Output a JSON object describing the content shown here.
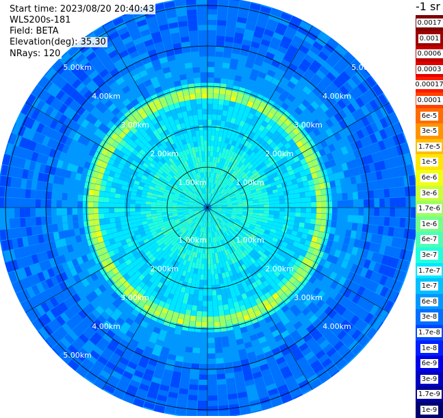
{
  "header": {
    "start_time": "Start time: 2023/08/20 20:40:43",
    "instrument": "WLS200s-181",
    "field": "Field: BETA",
    "elevation": "Elevation(deg): 35.30",
    "nrays": "NRays: 120"
  },
  "colorbar": {
    "unit_label": "-1 sr",
    "entries": [
      {
        "label": "0.0017",
        "color": "#7f0000"
      },
      {
        "label": "0.001",
        "color": "#9e0000"
      },
      {
        "label": "0.0006",
        "color": "#c00000"
      },
      {
        "label": "0.0003",
        "color": "#e00000"
      },
      {
        "label": "0.00017",
        "color": "#ff1a00"
      },
      {
        "label": "0.0001",
        "color": "#ff4200"
      },
      {
        "label": "6e-5",
        "color": "#ff6c00"
      },
      {
        "label": "3e-5",
        "color": "#ff9400"
      },
      {
        "label": "1.7e-5",
        "color": "#ffbe00"
      },
      {
        "label": "1e-5",
        "color": "#ffe600"
      },
      {
        "label": "6e-6",
        "color": "#f0ff10"
      },
      {
        "label": "3e-6",
        "color": "#c8ff38"
      },
      {
        "label": "1.7e-6",
        "color": "#9cff62"
      },
      {
        "label": "1e-6",
        "color": "#74ff8a"
      },
      {
        "label": "6e-7",
        "color": "#4cffb4"
      },
      {
        "label": "3e-7",
        "color": "#22ffdc"
      },
      {
        "label": "1.7e-7",
        "color": "#00e8ff"
      },
      {
        "label": "1e-7",
        "color": "#00c0ff"
      },
      {
        "label": "6e-8",
        "color": "#0098ff"
      },
      {
        "label": "3e-8",
        "color": "#0070ff"
      },
      {
        "label": "1.7e-8",
        "color": "#0048ff"
      },
      {
        "label": "1e-8",
        "color": "#0020ff"
      },
      {
        "label": "6e-9",
        "color": "#0000e8"
      },
      {
        "label": "3e-9",
        "color": "#0000c0"
      },
      {
        "label": "1.7e-9",
        "color": "#000098"
      },
      {
        "label": "1e-9",
        "color": "#000070"
      }
    ]
  },
  "chart_data": {
    "type": "heatmap",
    "projection": "polar",
    "field": "BETA",
    "elevation_deg": 35.3,
    "n_rays": 120,
    "range_rings_km": [
      1.0,
      2.0,
      3.0,
      4.0,
      5.0
    ],
    "ring_labels": [
      "1.00km",
      "2.00km",
      "3.00km",
      "4.00km",
      "5.00km"
    ],
    "max_range_km": 5.2,
    "background_levels": [
      {
        "range_km": [
          0.0,
          1.5
        ],
        "value": "3e-7"
      },
      {
        "range_km": [
          1.5,
          2.6
        ],
        "value": "1.7e-7"
      },
      {
        "range_km": [
          2.6,
          2.9
        ],
        "value": "1.7e-6"
      },
      {
        "range_km": [
          2.9,
          3.8
        ],
        "value": "6e-8"
      },
      {
        "range_km": [
          3.8,
          5.2
        ],
        "value": "3e-8"
      }
    ],
    "enhanced_ring_km": 2.75,
    "grid": true
  }
}
